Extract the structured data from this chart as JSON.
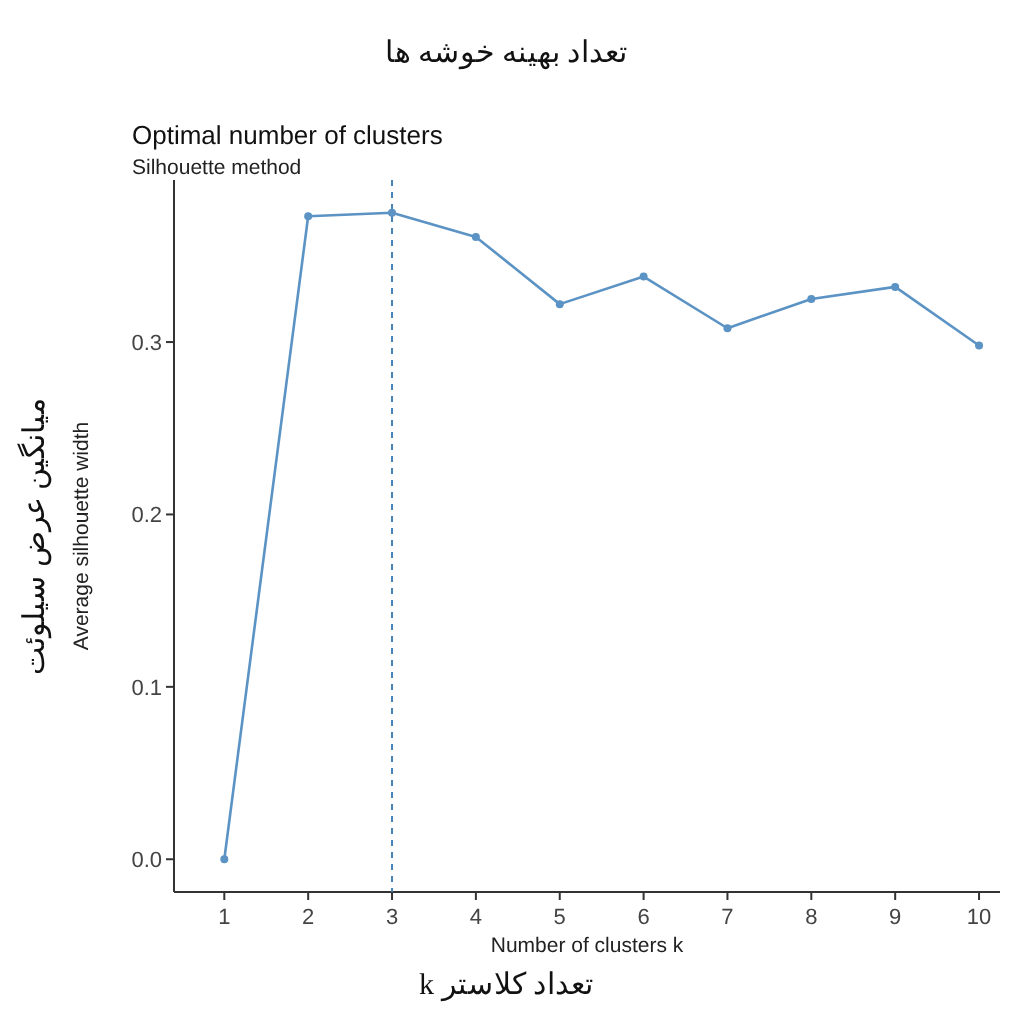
{
  "chart_data": {
    "type": "line",
    "title": "Optimal number of clusters",
    "subtitle": "Silhouette method",
    "xlabel": "Number of clusters k",
    "ylabel": "Average silhouette width",
    "annotations": [
      "تعداد بهینه خوشه ها",
      "میانگین عرض سیلوئت",
      "تعداد کلاستر k"
    ],
    "x": [
      1,
      2,
      3,
      4,
      5,
      6,
      7,
      8,
      9,
      10
    ],
    "series": [
      {
        "color": "#5b93c4",
        "values": [
          0.0,
          0.373,
          0.375,
          0.361,
          0.322,
          0.338,
          0.308,
          0.325,
          0.332,
          0.298
        ]
      }
    ],
    "xlim": [
      0.4,
      10.25
    ],
    "xticks": [
      1,
      2,
      3,
      4,
      5,
      6,
      7,
      8,
      9,
      10
    ],
    "ylim": [
      -0.019,
      0.394
    ],
    "yticks": [
      {
        "value": 0,
        "label": "0.0"
      },
      0.1,
      0.2,
      0.3
    ],
    "ref_lines": [
      {
        "axis": "x",
        "value": 3,
        "color": "#4682b4",
        "line_style": "dashed"
      }
    ],
    "marker": "circle",
    "line_style": "solid",
    "grid": false
  }
}
